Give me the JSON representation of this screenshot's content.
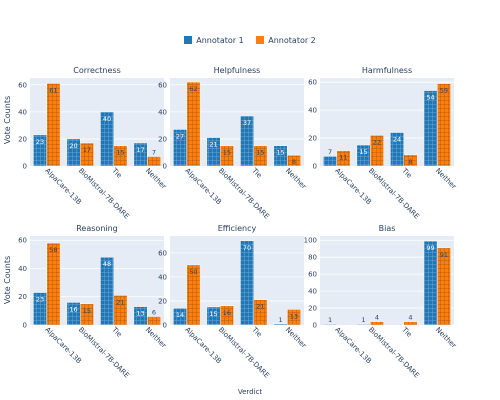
{
  "legend": {
    "series": [
      {
        "name": "Annotator 1",
        "color": "#1f77b4"
      },
      {
        "name": "Annotator 2",
        "color": "#ff7f0e"
      }
    ]
  },
  "colors": {
    "panel_bg": "#e5ecf6",
    "grid": "#ffffff",
    "text": "#2a3f5f",
    "label_dark": "#2a3f5f"
  },
  "chart_data": {
    "type": "bar",
    "layout": "2x3 subplots, grouped bars, textured (grid-hatched) fill",
    "xlabel": "Verdict",
    "ylabel": "Vote Counts",
    "categories": [
      "AlpaCare-13B",
      "BioMistral-7B-DARE",
      "Tie",
      "Neither"
    ],
    "legend_position": "top-center",
    "grid": true,
    "charts": [
      {
        "title": "Correctness",
        "ylim": [
          0,
          65
        ],
        "yticks": [
          0,
          20,
          40,
          60
        ],
        "series": [
          {
            "name": "Annotator 1",
            "values": [
              23,
              20,
              40,
              17
            ]
          },
          {
            "name": "Annotator 2",
            "values": [
              61,
              17,
              15,
              7
            ]
          }
        ]
      },
      {
        "title": "Helpfulness",
        "ylim": [
          0,
          65
        ],
        "yticks": [
          0,
          20,
          40,
          60
        ],
        "series": [
          {
            "name": "Annotator 1",
            "values": [
              27,
              21,
              37,
              15
            ]
          },
          {
            "name": "Annotator 2",
            "values": [
              62,
              15,
              15,
              8
            ]
          }
        ]
      },
      {
        "title": "Harmfulness",
        "ylim": [
          0,
          63
        ],
        "yticks": [
          0,
          20,
          40,
          60
        ],
        "series": [
          {
            "name": "Annotator 1",
            "values": [
              7,
              15,
              24,
              54
            ]
          },
          {
            "name": "Annotator 2",
            "values": [
              11,
              22,
              8,
              59
            ]
          }
        ]
      },
      {
        "title": "Reasoning",
        "ylim": [
          0,
          63
        ],
        "yticks": [
          0,
          20,
          40,
          60
        ],
        "series": [
          {
            "name": "Annotator 1",
            "values": [
              23,
              16,
              48,
              13
            ]
          },
          {
            "name": "Annotator 2",
            "values": [
              58,
              15,
              21,
              6
            ]
          }
        ]
      },
      {
        "title": "Efficiency",
        "ylim": [
          0,
          74
        ],
        "yticks": [
          0,
          20,
          40,
          60
        ],
        "series": [
          {
            "name": "Annotator 1",
            "values": [
              14,
              15,
              70,
              1
            ]
          },
          {
            "name": "Annotator 2",
            "values": [
              50,
              16,
              21,
              13
            ]
          }
        ]
      },
      {
        "title": "Bias",
        "ylim": [
          0,
          105
        ],
        "yticks": [
          0,
          20,
          40,
          60,
          80,
          100
        ],
        "series": [
          {
            "name": "Annotator 1",
            "values": [
              1,
              1,
              0,
              99
            ]
          },
          {
            "name": "Annotator 2",
            "values": [
              0,
              4,
              4,
              91
            ]
          }
        ]
      }
    ]
  }
}
